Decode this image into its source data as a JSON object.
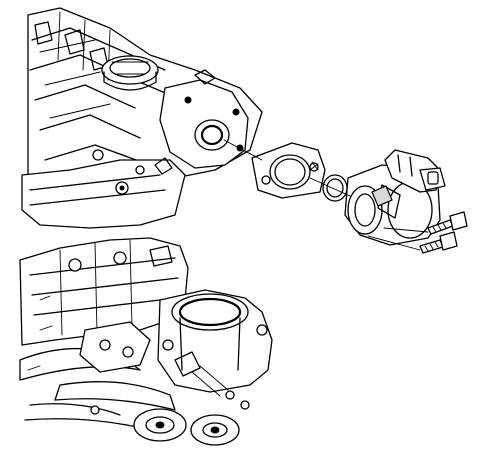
{
  "diagram": {
    "kind": "exploded-assembly-line-drawing",
    "colors": {
      "ink": "#000000",
      "paper": "#ffffff",
      "shade": "#d9d9d9"
    },
    "labels": []
  }
}
